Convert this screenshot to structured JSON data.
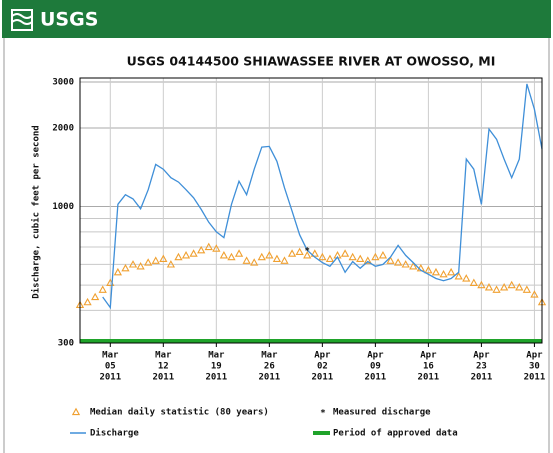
{
  "header": {
    "logo": "USGS"
  },
  "chart_data": {
    "type": "line",
    "title": "USGS 04144500 SHIAWASSEE RIVER AT OWOSSO, MI",
    "y_label": "Discharge, cubic feet per second",
    "log_y": true,
    "grid": true,
    "ylim": [
      300,
      3000
    ],
    "yticks": [
      300,
      1000,
      2000,
      3000
    ],
    "yminor": [
      400,
      500,
      600,
      700,
      800,
      900
    ],
    "xlim": [
      "2011-03-01",
      "2011-05-01"
    ],
    "xticks": [
      {
        "value": "2011-03-05",
        "label": [
          "Mar",
          "05",
          "2011"
        ]
      },
      {
        "value": "2011-03-12",
        "label": [
          "Mar",
          "12",
          "2011"
        ]
      },
      {
        "value": "2011-03-19",
        "label": [
          "Mar",
          "19",
          "2011"
        ]
      },
      {
        "value": "2011-03-26",
        "label": [
          "Mar",
          "26",
          "2011"
        ]
      },
      {
        "value": "2011-04-02",
        "label": [
          "Apr",
          "02",
          "2011"
        ]
      },
      {
        "value": "2011-04-09",
        "label": [
          "Apr",
          "09",
          "2011"
        ]
      },
      {
        "value": "2011-04-16",
        "label": [
          "Apr",
          "16",
          "2011"
        ]
      },
      {
        "value": "2011-04-23",
        "label": [
          "Apr",
          "23",
          "2011"
        ]
      },
      {
        "value": "2011-04-30",
        "label": [
          "Apr",
          "30",
          "2011"
        ]
      }
    ],
    "x": [
      "2011-03-01",
      "2011-03-02",
      "2011-03-03",
      "2011-03-04",
      "2011-03-05",
      "2011-03-06",
      "2011-03-07",
      "2011-03-08",
      "2011-03-09",
      "2011-03-10",
      "2011-03-11",
      "2011-03-12",
      "2011-03-13",
      "2011-03-14",
      "2011-03-15",
      "2011-03-16",
      "2011-03-17",
      "2011-03-18",
      "2011-03-19",
      "2011-03-20",
      "2011-03-21",
      "2011-03-22",
      "2011-03-23",
      "2011-03-24",
      "2011-03-25",
      "2011-03-26",
      "2011-03-27",
      "2011-03-28",
      "2011-03-29",
      "2011-03-30",
      "2011-03-31",
      "2011-04-01",
      "2011-04-02",
      "2011-04-03",
      "2011-04-04",
      "2011-04-05",
      "2011-04-06",
      "2011-04-07",
      "2011-04-08",
      "2011-04-09",
      "2011-04-10",
      "2011-04-11",
      "2011-04-12",
      "2011-04-13",
      "2011-04-14",
      "2011-04-15",
      "2011-04-16",
      "2011-04-17",
      "2011-04-18",
      "2011-04-19",
      "2011-04-20",
      "2011-04-21",
      "2011-04-22",
      "2011-04-23",
      "2011-04-24",
      "2011-04-25",
      "2011-04-26",
      "2011-04-27",
      "2011-04-28",
      "2011-04-29",
      "2011-04-30",
      "2011-05-01"
    ],
    "series": [
      {
        "name": "Median daily statistic (80 years)",
        "color": "#f0a030",
        "marker": "triangle",
        "values": [
          420,
          430,
          450,
          480,
          510,
          560,
          580,
          600,
          590,
          610,
          620,
          630,
          600,
          640,
          650,
          660,
          680,
          700,
          690,
          650,
          640,
          660,
          620,
          610,
          640,
          650,
          630,
          620,
          660,
          670,
          650,
          660,
          640,
          630,
          650,
          660,
          640,
          630,
          620,
          640,
          650,
          620,
          610,
          600,
          590,
          580,
          570,
          560,
          550,
          560,
          540,
          530,
          510,
          500,
          490,
          480,
          490,
          500,
          490,
          480,
          460,
          430
        ]
      },
      {
        "name": "Discharge",
        "color": "#3f8fd8",
        "marker": "line",
        "values": [
          null,
          null,
          null,
          450,
          410,
          1020,
          1110,
          1070,
          980,
          1160,
          1450,
          1390,
          1290,
          1240,
          1160,
          1080,
          975,
          870,
          800,
          760,
          1020,
          1250,
          1110,
          1390,
          1690,
          1700,
          1490,
          1180,
          960,
          780,
          680,
          640,
          610,
          590,
          640,
          560,
          615,
          580,
          615,
          590,
          600,
          640,
          710,
          650,
          610,
          570,
          550,
          530,
          520,
          530,
          560,
          1520,
          1390,
          1020,
          1980,
          1810,
          1520,
          1290,
          1520,
          2950,
          2360,
          1660
        ]
      }
    ],
    "measured": {
      "name": "Measured discharge",
      "color": "#e02020",
      "x": [
        "2011-03-31"
      ],
      "values": [
        680
      ]
    },
    "approved": {
      "name": "Period of approved data",
      "color": "#1fa32a",
      "range": [
        "2011-03-01",
        "2011-05-01"
      ]
    }
  }
}
